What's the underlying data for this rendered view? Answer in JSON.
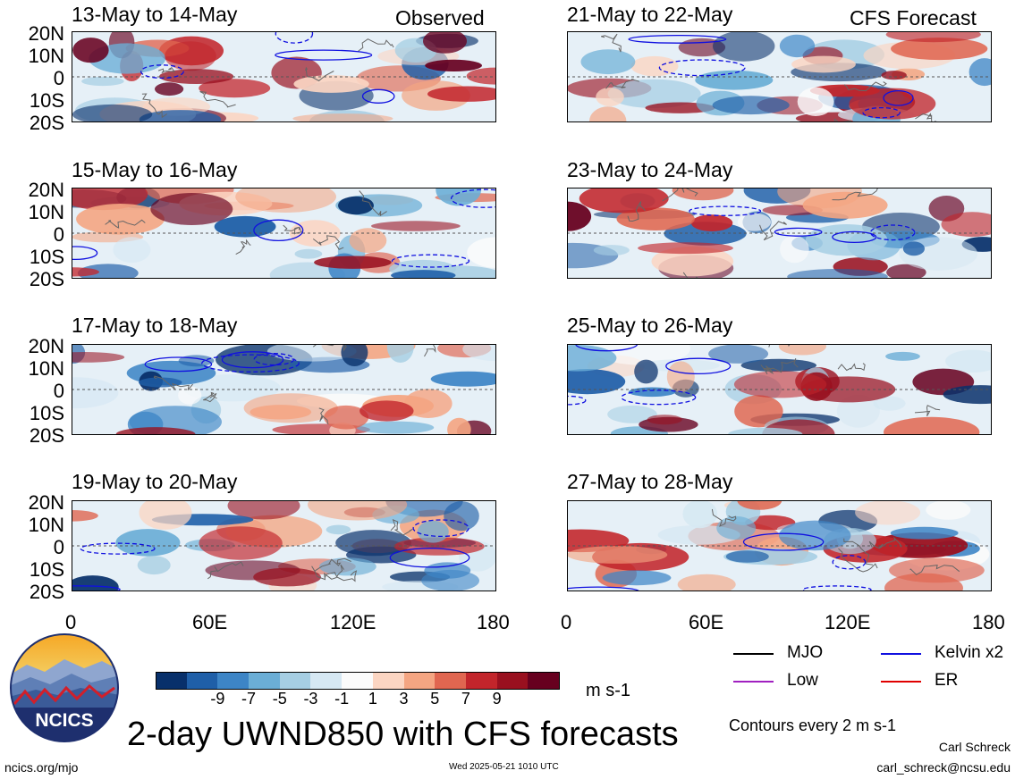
{
  "header": {
    "observed_label": "Observed",
    "forecast_label": "CFS Forecast"
  },
  "panels_left": [
    {
      "title": "13-May to 14-May"
    },
    {
      "title": "15-May to 16-May"
    },
    {
      "title": "17-May to 18-May"
    },
    {
      "title": "19-May to 20-May"
    }
  ],
  "panels_right": [
    {
      "title": "21-May to 22-May"
    },
    {
      "title": "23-May to 24-May"
    },
    {
      "title": "25-May to 26-May"
    },
    {
      "title": "27-May to 28-May"
    }
  ],
  "axes": {
    "y_labels": [
      "20N",
      "10N",
      "0",
      "10S",
      "20S"
    ],
    "x_labels": [
      "0",
      "60E",
      "120E",
      "180"
    ]
  },
  "legend": {
    "mjo": "MJO",
    "kelvin": "Kelvin x2",
    "low": "Low",
    "er": "ER",
    "mjo_color": "#000000",
    "kelvin_color": "#1010e0",
    "low_color": "#a020c0",
    "er_color": "#e00000",
    "contours_note": "Contours every 2 m s-1"
  },
  "colorbar": {
    "labels": [
      "-9",
      "-7",
      "-5",
      "-3",
      "-1",
      "1",
      "3",
      "5",
      "7",
      "9"
    ],
    "colors": [
      "#08306b",
      "#1f5fa8",
      "#3d85c6",
      "#6baed6",
      "#a6cee3",
      "#d6e8f3",
      "#fbfbfb",
      "#fbd5c2",
      "#f4a582",
      "#e06650",
      "#c2252b",
      "#99101f",
      "#67001f"
    ],
    "units": "m s-1"
  },
  "main_title": "2-day UWND850 with CFS forecasts",
  "footer": {
    "url": "ncics.org/mjo",
    "timestamp": "Wed 2025-05-21 1010 UTC",
    "author": "Carl Schreck",
    "email": "carl_schreck@ncsu.edu",
    "logo_text": "NCICS"
  },
  "chart_data": {
    "type": "heatmap",
    "variable": "2-day UWND850",
    "units": "m s-1",
    "x_range": [
      0,
      180
    ],
    "y_range": [
      -20,
      20
    ],
    "x_ticks": [
      "0",
      "60E",
      "120E",
      "180"
    ],
    "y_ticks": [
      "20N",
      "10N",
      "0",
      "10S",
      "20S"
    ],
    "color_levels": [
      -9,
      -7,
      -5,
      -3,
      -1,
      1,
      3,
      5,
      7,
      9
    ],
    "contour_interval": 2,
    "panels": [
      {
        "period": "13-May to 14-May",
        "source": "Observed"
      },
      {
        "period": "15-May to 16-May",
        "source": "Observed"
      },
      {
        "period": "17-May to 18-May",
        "source": "Observed"
      },
      {
        "period": "19-May to 20-May",
        "source": "Observed"
      },
      {
        "period": "21-May to 22-May",
        "source": "CFS Forecast"
      },
      {
        "period": "23-May to 24-May",
        "source": "CFS Forecast"
      },
      {
        "period": "25-May to 26-May",
        "source": "CFS Forecast"
      },
      {
        "period": "27-May to 28-May",
        "source": "CFS Forecast"
      }
    ]
  }
}
